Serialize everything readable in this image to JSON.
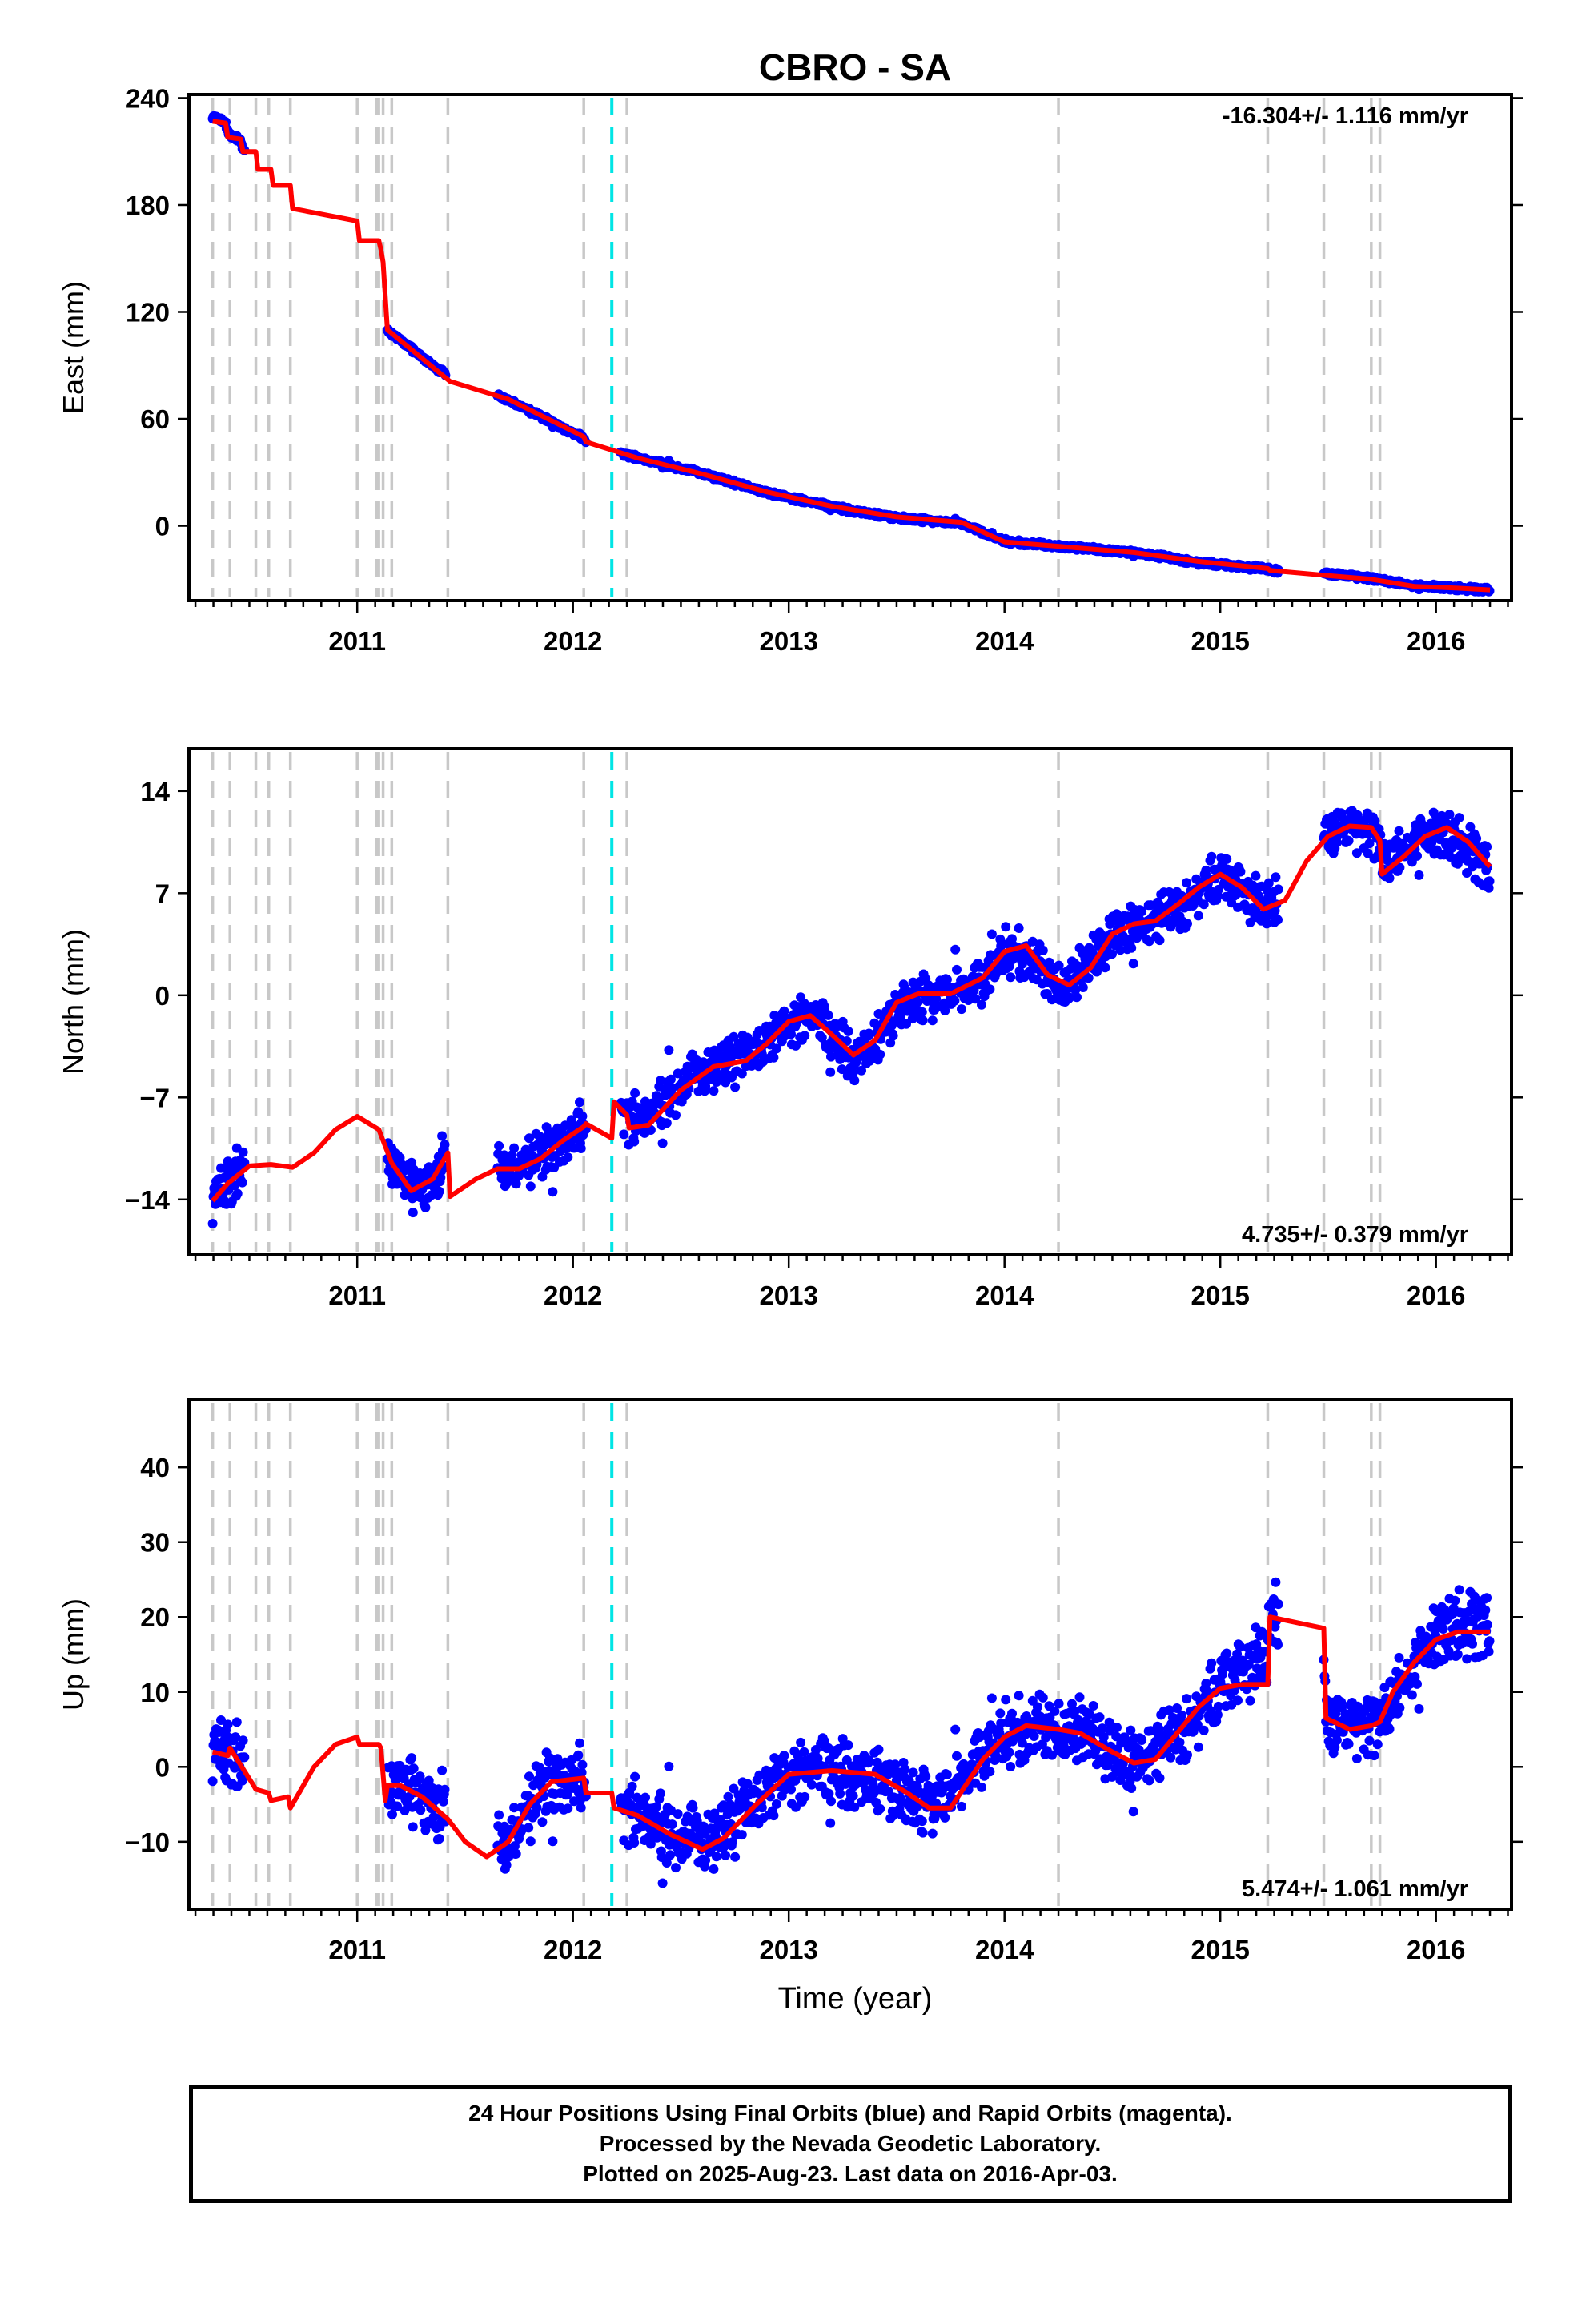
{
  "title": "CBRO - SA",
  "x_label": "Time (year)",
  "x_ticks": [
    "2011",
    "2012",
    "2013",
    "2014",
    "2015",
    "2016"
  ],
  "colors": {
    "data": "#0000ff",
    "model": "#ff0000",
    "equipment_line": "#c8c8c8",
    "earthquake_line": "#00e5e5"
  },
  "panels": [
    {
      "id": "east",
      "ylabel": "East (mm)",
      "ticks": [
        "240",
        "180",
        "120",
        "60",
        "0"
      ],
      "rate": "-16.304+/- 1.116 mm/yr"
    },
    {
      "id": "north",
      "ylabel": "North (mm)",
      "ticks": [
        "14",
        "7",
        "0",
        "−7",
        "−14"
      ],
      "rate": "4.735+/- 0.379 mm/yr"
    },
    {
      "id": "up",
      "ylabel": "Up (mm)",
      "ticks": [
        "40",
        "30",
        "20",
        "10",
        "0",
        "−10"
      ],
      "rate": "5.474+/- 1.061 mm/yr"
    }
  ],
  "footer": {
    "line1": "24 Hour Positions Using Final Orbits (blue) and Rapid Orbits (magenta).",
    "line2": "Processed by the Nevada Geodetic Laboratory.",
    "line3": "Plotted on 2025-Aug-23. Last data on 2016-Apr-03."
  },
  "chart_data": [
    {
      "type": "scatter",
      "title": "CBRO - SA",
      "ylabel": "East (mm)",
      "xlabel": "",
      "xlim": [
        2010.22,
        2016.35
      ],
      "ylim": [
        -42,
        242
      ],
      "rate": "-16.304+/- 1.116 mm/yr",
      "equipment_lines": [
        2010.33,
        2010.41,
        2010.53,
        2010.59,
        2010.69,
        2011.0,
        2011.09,
        2011.1,
        2011.12,
        2011.16,
        2011.42,
        2012.05,
        2012.25,
        2014.25,
        2015.22,
        2015.48,
        2015.7,
        2015.74
      ],
      "earthquake_lines": [
        2012.18
      ],
      "data_segments": [
        [
          2010.33,
          2010.48
        ],
        [
          2011.14,
          2011.41
        ],
        [
          2011.65,
          2012.06
        ],
        [
          2012.22,
          2015.27
        ],
        [
          2015.48,
          2016.25
        ]
      ],
      "series": [
        {
          "style": "dots",
          "x": [
            2010.33,
            2010.4,
            2010.5,
            2011.15,
            2011.25,
            2011.4,
            2011.7,
            2011.85,
            2012.0,
            2012.3,
            2012.6,
            2012.9,
            2013.2,
            2013.5,
            2013.8,
            2014.0,
            2014.3,
            2014.6,
            2014.9,
            2015.25,
            2015.5,
            2015.7,
            2015.9,
            2016.1,
            2016.25
          ],
          "y": [
            235,
            225,
            207,
            108,
            100,
            88,
            70,
            60,
            50,
            38,
            30,
            18,
            10,
            4,
            0,
            -8,
            -12,
            -15,
            -22,
            -25,
            -25,
            -28,
            -33,
            -35,
            -36
          ]
        },
        {
          "style": "line",
          "x": [
            2010.33,
            2010.39,
            2010.4,
            2010.46,
            2010.47,
            2010.53,
            2010.54,
            2010.6,
            2010.61,
            2010.69,
            2010.7,
            2011.0,
            2011.01,
            2011.1,
            2011.11,
            2011.12,
            2011.14,
            2011.16,
            2011.42,
            2011.43,
            2011.7,
            2011.85,
            2012.0,
            2012.05,
            2012.06,
            2012.3,
            2012.6,
            2012.9,
            2013.2,
            2013.5,
            2013.8,
            2014.0,
            2014.3,
            2014.6,
            2014.9,
            2015.22,
            2015.23,
            2015.5,
            2015.7,
            2015.9,
            2016.1,
            2016.25
          ],
          "y": [
            227,
            226,
            218,
            217,
            210,
            210,
            200,
            200,
            191,
            191,
            178,
            171,
            160,
            160,
            155,
            148,
            110,
            108,
            82,
            81,
            71,
            62,
            53,
            50,
            47,
            38,
            29,
            19,
            11,
            5,
            2,
            -9,
            -12,
            -15,
            -20,
            -24,
            -25,
            -28,
            -30,
            -34,
            -35,
            -36
          ]
        }
      ]
    },
    {
      "type": "scatter",
      "title": "",
      "ylabel": "North (mm)",
      "xlabel": "",
      "xlim": [
        2010.22,
        2016.35
      ],
      "ylim": [
        -17.8,
        16.9
      ],
      "rate": "4.735+/- 0.379 mm/yr",
      "equipment_lines": [
        2010.33,
        2010.41,
        2010.53,
        2010.59,
        2010.69,
        2011.0,
        2011.09,
        2011.1,
        2011.12,
        2011.16,
        2011.42,
        2012.05,
        2012.25,
        2014.25,
        2015.22,
        2015.48,
        2015.7,
        2015.74
      ],
      "earthquake_lines": [
        2012.18
      ],
      "data_segments": [
        [
          2010.33,
          2010.48
        ],
        [
          2011.14,
          2011.41
        ],
        [
          2011.65,
          2012.06
        ],
        [
          2012.22,
          2015.27
        ],
        [
          2015.48,
          2016.25
        ]
      ],
      "series": [
        {
          "style": "dots",
          "x": [
            2010.33,
            2010.45,
            2011.15,
            2011.3,
            2011.4,
            2011.7,
            2011.9,
            2012.05,
            2012.3,
            2012.6,
            2012.9,
            2013.1,
            2013.3,
            2013.6,
            2013.9,
            2014.0,
            2014.25,
            2014.5,
            2014.8,
            2015.0,
            2015.2,
            2015.5,
            2015.7,
            2015.9,
            2016.1,
            2016.25
          ],
          "y": [
            -14,
            -12,
            -11.5,
            -13.5,
            -12,
            -11.5,
            -10.5,
            -8.5,
            -7.5,
            -5,
            -3,
            -1.5,
            -4,
            -0.5,
            0.5,
            3,
            0.5,
            4.5,
            5,
            8,
            6,
            11.5,
            11,
            11,
            10,
            8
          ]
        },
        {
          "style": "line",
          "x": [
            2010.33,
            2010.4,
            2010.5,
            2010.6,
            2010.7,
            2010.8,
            2010.9,
            2011.0,
            2011.1,
            2011.16,
            2011.25,
            2011.35,
            2011.42,
            2011.43,
            2011.55,
            2011.65,
            2011.75,
            2011.85,
            2011.95,
            2012.05,
            2012.06,
            2012.18,
            2012.19,
            2012.25,
            2012.26,
            2012.35,
            2012.5,
            2012.65,
            2012.8,
            2012.9,
            2013.0,
            2013.1,
            2013.2,
            2013.3,
            2013.4,
            2013.5,
            2013.6,
            2013.75,
            2013.9,
            2014.0,
            2014.1,
            2014.2,
            2014.3,
            2014.4,
            2014.5,
            2014.6,
            2014.7,
            2014.8,
            2014.9,
            2015.0,
            2015.1,
            2015.2,
            2015.3,
            2015.4,
            2015.5,
            2015.6,
            2015.7,
            2015.74,
            2015.75,
            2015.85,
            2015.95,
            2016.05,
            2016.15,
            2016.25
          ],
          "y": [
            -14.1,
            -12.9,
            -11.7,
            -11.6,
            -11.8,
            -10.8,
            -9.2,
            -8.3,
            -9.2,
            -11.5,
            -13.4,
            -12.6,
            -10.8,
            -13.8,
            -12.6,
            -11.9,
            -11.9,
            -11.2,
            -10,
            -9,
            -8.8,
            -9.8,
            -7.3,
            -8.2,
            -9.1,
            -8.9,
            -6.5,
            -4.9,
            -4.5,
            -3.3,
            -1.8,
            -1.4,
            -2.7,
            -4.1,
            -3.1,
            -0.5,
            0.1,
            0.1,
            1.2,
            3,
            3.4,
            1.4,
            0.7,
            1.9,
            4.2,
            4.9,
            5.1,
            6.2,
            7.4,
            8.3,
            7.4,
            5.9,
            6.5,
            9.2,
            10.9,
            11.6,
            11.5,
            10.6,
            8.3,
            9.5,
            10.9,
            11.5,
            10.5,
            8.8
          ]
        }
      ]
    },
    {
      "type": "scatter",
      "title": "",
      "ylabel": "Up (mm)",
      "xlabel": "Time (year)",
      "xlim": [
        2010.22,
        2016.35
      ],
      "ylim": [
        -19,
        49
      ],
      "rate": "5.474+/- 1.061 mm/yr",
      "equipment_lines": [
        2010.33,
        2010.41,
        2010.53,
        2010.59,
        2010.69,
        2011.0,
        2011.09,
        2011.1,
        2011.12,
        2011.16,
        2011.42,
        2012.05,
        2012.25,
        2014.25,
        2015.22,
        2015.48,
        2015.7,
        2015.74
      ],
      "earthquake_lines": [
        2012.18
      ],
      "data_segments": [
        [
          2010.33,
          2010.48
        ],
        [
          2011.14,
          2011.41
        ],
        [
          2011.65,
          2012.06
        ],
        [
          2012.22,
          2015.27
        ],
        [
          2015.48,
          2016.25
        ]
      ],
      "series": [
        {
          "style": "dots",
          "x": [
            2010.35,
            2010.45,
            2011.15,
            2011.3,
            2011.7,
            2011.9,
            2012.05,
            2012.3,
            2012.5,
            2012.7,
            2013.0,
            2013.3,
            2013.6,
            2013.8,
            2014.0,
            2014.3,
            2014.6,
            2014.9,
            2015.1,
            2015.25,
            2015.5,
            2015.7,
            2015.9,
            2016.0,
            2016.1,
            2016.25
          ],
          "y": [
            3,
            1,
            -3,
            -4,
            -10,
            -2,
            -1,
            -6,
            -9,
            -6,
            -1,
            0,
            -4,
            1,
            5,
            6,
            2,
            5,
            17,
            22,
            5,
            7,
            12,
            18,
            22,
            20
          ]
        },
        {
          "style": "line",
          "x": [
            2010.33,
            2010.4,
            2010.41,
            2010.52,
            2010.53,
            2010.59,
            2010.6,
            2010.68,
            2010.69,
            2010.8,
            2010.9,
            2011.0,
            2011.01,
            2011.1,
            2011.11,
            2011.13,
            2011.14,
            2011.2,
            2011.3,
            2011.42,
            2011.5,
            2011.6,
            2011.7,
            2011.8,
            2011.9,
            2012.05,
            2012.06,
            2012.18,
            2012.19,
            2012.3,
            2012.45,
            2012.6,
            2012.7,
            2012.85,
            2013.0,
            2013.2,
            2013.4,
            2013.55,
            2013.65,
            2013.75,
            2013.9,
            2014.0,
            2014.1,
            2014.25,
            2014.35,
            2014.5,
            2014.6,
            2014.7,
            2014.8,
            2014.9,
            2015.0,
            2015.1,
            2015.22,
            2015.23,
            2015.48,
            2015.49,
            2015.6,
            2015.7,
            2015.74,
            2015.8,
            2015.9,
            2016.0,
            2016.1,
            2016.25
          ],
          "y": [
            2,
            1.5,
            2.5,
            -2.5,
            -3,
            -3.5,
            -4.5,
            -4,
            -5.5,
            0,
            3,
            4,
            3,
            3,
            2.5,
            -4.5,
            -2.5,
            -2.5,
            -4,
            -7,
            -10,
            -12,
            -10,
            -5,
            -2,
            -1.5,
            -3.5,
            -3.5,
            -5.5,
            -6.5,
            -9,
            -11,
            -9.5,
            -5,
            -1,
            -0.5,
            -1,
            -3.5,
            -5.5,
            -5.5,
            1,
            4,
            5.5,
            5,
            4.5,
            2,
            0.5,
            1,
            4.5,
            8,
            10.5,
            11,
            11,
            20,
            18.5,
            6.5,
            5,
            5.5,
            6,
            10,
            14,
            17,
            18,
            18
          ]
        }
      ]
    }
  ]
}
